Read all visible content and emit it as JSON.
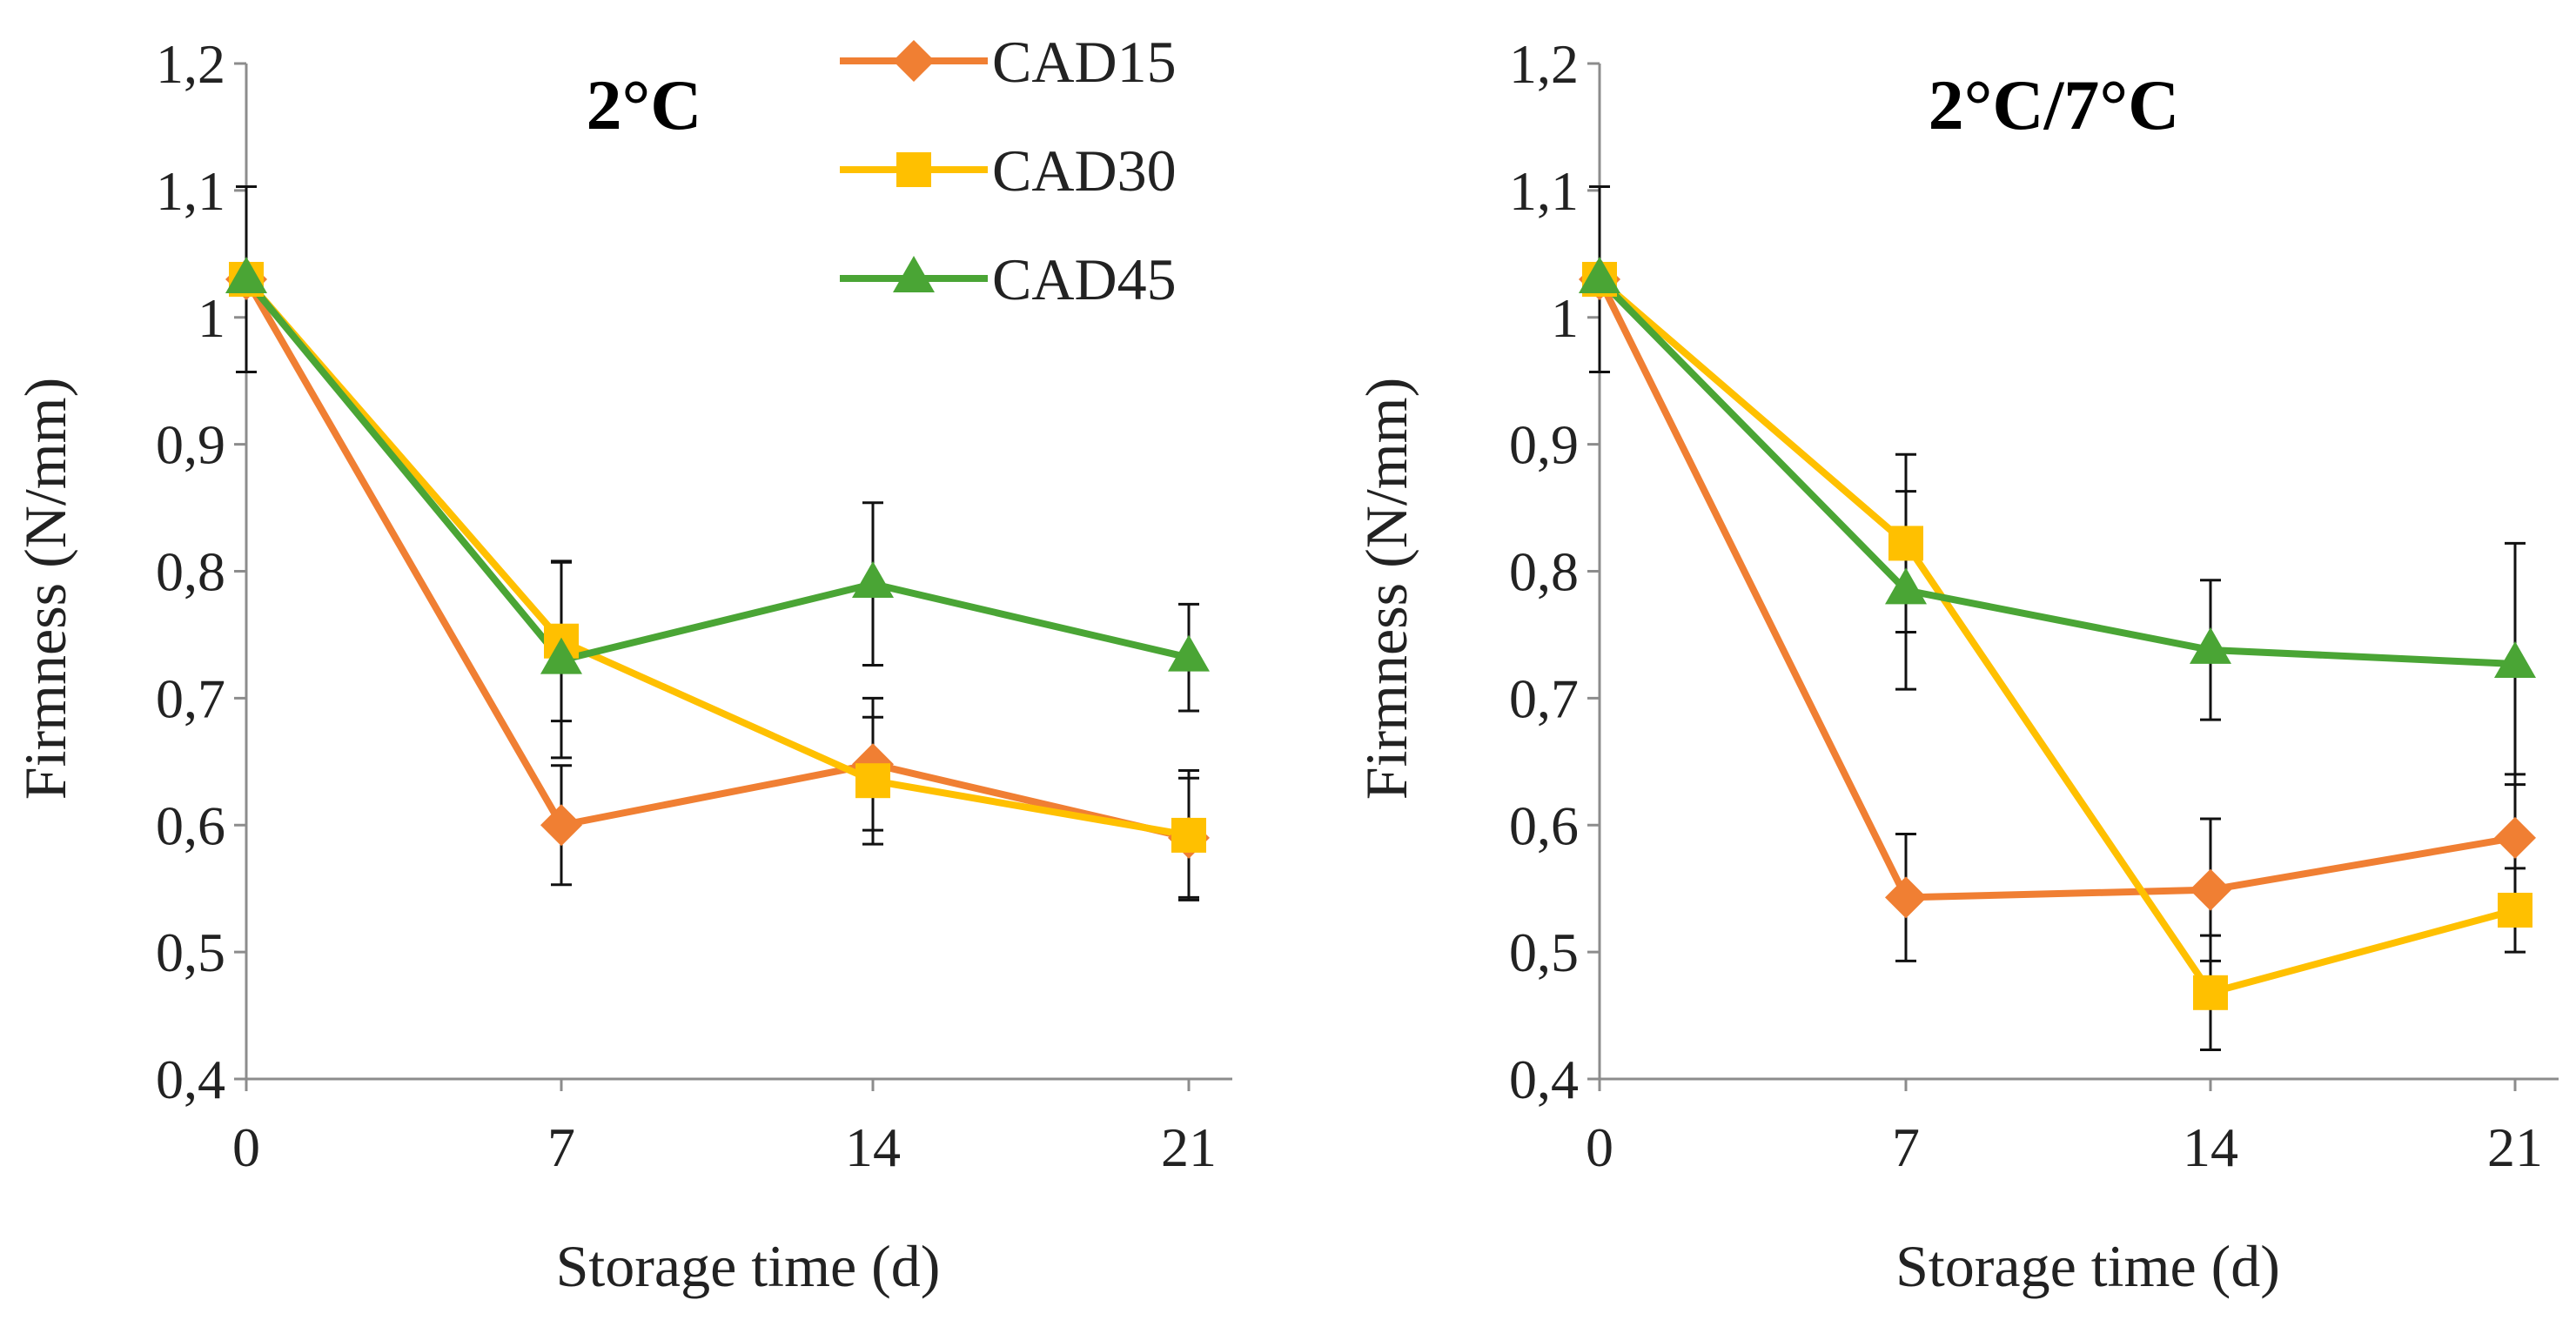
{
  "chart_data": [
    {
      "type": "line",
      "title": "2°C",
      "xlabel": "Storage time (d)",
      "ylabel": "Firmness (N/mm)",
      "categories": [
        "0",
        "7",
        "14",
        "21"
      ],
      "ylim": [
        0.4,
        1.2
      ],
      "yticks": [
        "0,4",
        "0,5",
        "0,6",
        "0,7",
        "0,8",
        "0,9",
        "1",
        "1,1",
        "1,2"
      ],
      "grid": false,
      "legend": "top-right",
      "series": [
        {
          "name": "CAD15",
          "color": "#f07f33",
          "marker": "diamond",
          "values": [
            1.03,
            0.6,
            0.648,
            0.59
          ],
          "errors": [
            0.073,
            0.047,
            0.052,
            0.047
          ]
        },
        {
          "name": "CAD30",
          "color": "#ffc000",
          "marker": "square",
          "values": [
            1.03,
            0.745,
            0.635,
            0.592
          ],
          "errors": [
            0.073,
            0.063,
            0.05,
            0.051
          ]
        },
        {
          "name": "CAD45",
          "color": "#4aa535",
          "marker": "triangle",
          "values": [
            1.03,
            0.73,
            0.79,
            0.732
          ],
          "errors": [
            0.073,
            0.077,
            0.064,
            0.042
          ]
        }
      ]
    },
    {
      "type": "line",
      "title": "2°C/7°C",
      "xlabel": "Storage time (d)",
      "ylabel": "Firmness (N/mm)",
      "categories": [
        "0",
        "7",
        "14",
        "21"
      ],
      "ylim": [
        0.4,
        1.2
      ],
      "yticks": [
        "0,4",
        "0,5",
        "0,6",
        "0,7",
        "0,8",
        "0,9",
        "1",
        "1,1",
        "1,2"
      ],
      "grid": false,
      "legend": "none",
      "series": [
        {
          "name": "CAD15",
          "color": "#f07f33",
          "marker": "diamond",
          "values": [
            1.03,
            0.543,
            0.549,
            0.59
          ],
          "errors": [
            0.073,
            0.05,
            0.056,
            0.05
          ]
        },
        {
          "name": "CAD30",
          "color": "#ffc000",
          "marker": "square",
          "values": [
            1.03,
            0.822,
            0.468,
            0.533
          ],
          "errors": [
            0.073,
            0.07,
            0.045,
            0.033
          ]
        },
        {
          "name": "CAD45",
          "color": "#4aa535",
          "marker": "triangle",
          "values": [
            1.03,
            0.785,
            0.738,
            0.727
          ],
          "errors": [
            0.073,
            0.078,
            0.055,
            0.095
          ]
        }
      ]
    }
  ]
}
